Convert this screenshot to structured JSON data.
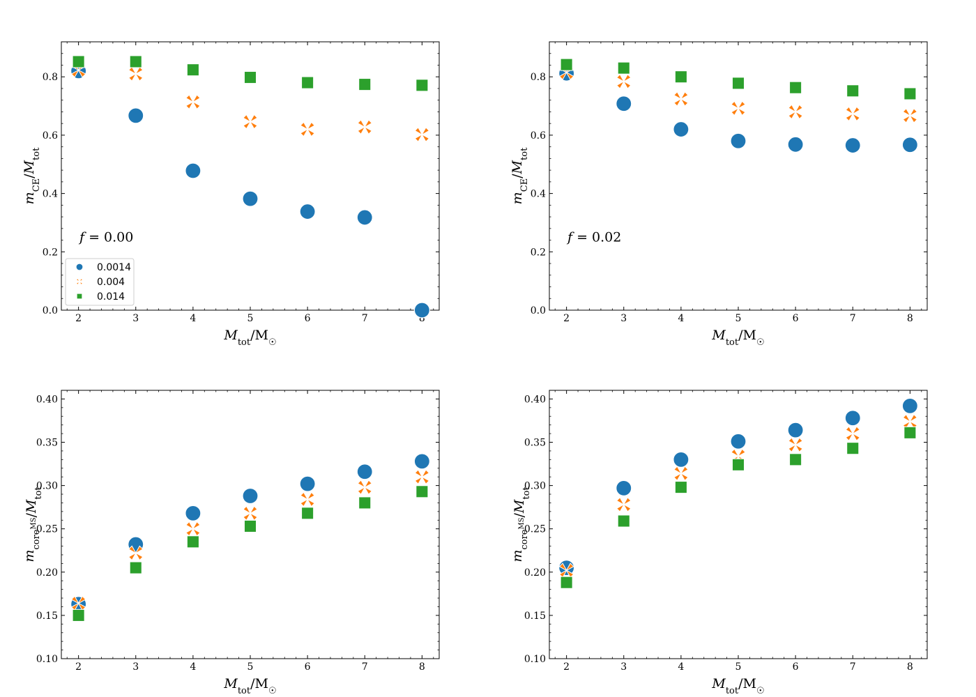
{
  "colors": {
    "s0014": "#1f77b4",
    "s004": "#ff7f0e",
    "s014": "#2ca02c"
  },
  "legend": {
    "placement": "lower-left of top-left panel",
    "entries": [
      {
        "label": "0.0014",
        "marker": "circle",
        "color": "#1f77b4"
      },
      {
        "label": "0.004",
        "marker": "x",
        "color": "#ff7f0e"
      },
      {
        "label": "0.014",
        "marker": "square",
        "color": "#2ca02c"
      }
    ]
  },
  "chart_data": [
    {
      "type": "scatter",
      "title": "",
      "annotation": "f = 0.00",
      "xlabel": "M_tot / M_☉",
      "ylabel": "m_CE / M_tot",
      "xlim": [
        1.7,
        8.3
      ],
      "ylim": [
        0.0,
        0.92
      ],
      "xticks": [
        2,
        3,
        4,
        5,
        6,
        7,
        8
      ],
      "yticks": [
        0.0,
        0.2,
        0.4,
        0.6,
        0.8
      ],
      "ytick_labels": [
        "0.0",
        "0.2",
        "0.4",
        "0.6",
        "0.8"
      ],
      "x": [
        2,
        3,
        4,
        5,
        6,
        7,
        8
      ],
      "series": [
        {
          "name": "0.0014",
          "marker": "circle",
          "values": [
            0.82,
            0.667,
            0.478,
            0.382,
            0.338,
            0.318,
            0.0
          ]
        },
        {
          "name": "0.004",
          "marker": "x",
          "values": [
            0.823,
            0.81,
            0.714,
            0.646,
            0.62,
            0.628,
            0.602
          ]
        },
        {
          "name": "0.014",
          "marker": "square",
          "values": [
            0.852,
            0.852,
            0.824,
            0.798,
            0.78,
            0.774,
            0.771
          ]
        }
      ]
    },
    {
      "type": "scatter",
      "title": "",
      "annotation": "f = 0.02",
      "xlabel": "M_tot / M_☉",
      "ylabel": "m_CE / M_tot",
      "xlim": [
        1.7,
        8.3
      ],
      "ylim": [
        0.0,
        0.92
      ],
      "xticks": [
        2,
        3,
        4,
        5,
        6,
        7,
        8
      ],
      "yticks": [
        0.0,
        0.2,
        0.4,
        0.6,
        0.8
      ],
      "ytick_labels": [
        "0.0",
        "0.2",
        "0.4",
        "0.6",
        "0.8"
      ],
      "x": [
        2,
        3,
        4,
        5,
        6,
        7,
        8
      ],
      "series": [
        {
          "name": "0.0014",
          "marker": "circle",
          "values": [
            0.812,
            0.708,
            0.62,
            0.58,
            0.568,
            0.565,
            0.567
          ]
        },
        {
          "name": "0.004",
          "marker": "x",
          "values": [
            0.815,
            0.784,
            0.724,
            0.692,
            0.68,
            0.673,
            0.667
          ]
        },
        {
          "name": "0.014",
          "marker": "square",
          "values": [
            0.842,
            0.83,
            0.8,
            0.778,
            0.763,
            0.752,
            0.742
          ]
        }
      ]
    },
    {
      "type": "scatter",
      "title": "",
      "xlabel": "M_tot / M_☉",
      "ylabel": "m_core_MS / M_tot",
      "xlim": [
        1.7,
        8.3
      ],
      "ylim": [
        0.1,
        0.41
      ],
      "xticks": [
        2,
        3,
        4,
        5,
        6,
        7,
        8
      ],
      "yticks": [
        0.1,
        0.15,
        0.2,
        0.25,
        0.3,
        0.35,
        0.4
      ],
      "ytick_labels": [
        "0.10",
        "0.15",
        "0.20",
        "0.25",
        "0.30",
        "0.35",
        "0.40"
      ],
      "x": [
        2,
        3,
        4,
        5,
        6,
        7,
        8
      ],
      "series": [
        {
          "name": "0.0014",
          "marker": "circle",
          "values": [
            0.163,
            0.232,
            0.268,
            0.288,
            0.302,
            0.316,
            0.328
          ]
        },
        {
          "name": "0.004",
          "marker": "x",
          "values": [
            0.164,
            0.222,
            0.25,
            0.268,
            0.284,
            0.298,
            0.31
          ]
        },
        {
          "name": "0.014",
          "marker": "square",
          "values": [
            0.15,
            0.205,
            0.235,
            0.253,
            0.268,
            0.28,
            0.293
          ]
        }
      ]
    },
    {
      "type": "scatter",
      "title": "",
      "xlabel": "M_tot / M_☉",
      "ylabel": "m_core_MS / M_tot",
      "xlim": [
        1.7,
        8.3
      ],
      "ylim": [
        0.1,
        0.41
      ],
      "xticks": [
        2,
        3,
        4,
        5,
        6,
        7,
        8
      ],
      "yticks": [
        0.1,
        0.15,
        0.2,
        0.25,
        0.3,
        0.35,
        0.4
      ],
      "ytick_labels": [
        "0.10",
        "0.15",
        "0.20",
        "0.25",
        "0.30",
        "0.35",
        "0.40"
      ],
      "x": [
        2,
        3,
        4,
        5,
        6,
        7,
        8
      ],
      "series": [
        {
          "name": "0.0014",
          "marker": "circle",
          "values": [
            0.205,
            0.297,
            0.33,
            0.351,
            0.364,
            0.378,
            0.392
          ]
        },
        {
          "name": "0.004",
          "marker": "x",
          "values": [
            0.202,
            0.278,
            0.314,
            0.334,
            0.347,
            0.36,
            0.374
          ]
        },
        {
          "name": "0.014",
          "marker": "square",
          "values": [
            0.188,
            0.259,
            0.298,
            0.324,
            0.33,
            0.343,
            0.361
          ]
        }
      ]
    }
  ]
}
